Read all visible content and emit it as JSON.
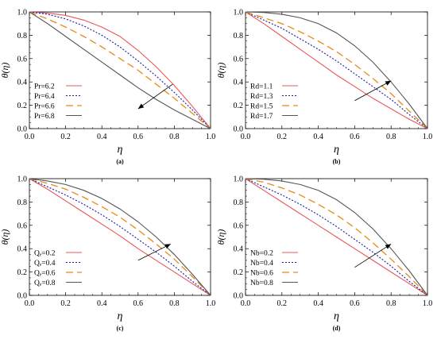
{
  "chart_data": [
    {
      "type": "line",
      "panel_label": "(a)",
      "xlabel": "η",
      "ylabel": "θ(η)",
      "xlim": [
        0,
        1
      ],
      "ylim": [
        0,
        1
      ],
      "xticks": [
        "0.0",
        "0.2",
        "0.4",
        "0.6",
        "0.8",
        "1.0"
      ],
      "yticks": [
        "0.0",
        "0.2",
        "0.4",
        "0.6",
        "0.8",
        "1.0"
      ],
      "legend_position": "bottom-left",
      "arrow": {
        "from": [
          0.79,
          0.38
        ],
        "to": [
          0.6,
          0.17
        ],
        "direction": "decreasing"
      },
      "x": [
        0,
        0.1,
        0.2,
        0.3,
        0.4,
        0.5,
        0.6,
        0.7,
        0.8,
        0.9,
        1.0
      ],
      "series": [
        {
          "name": "Pr=6.2",
          "color": "#e8575a",
          "dash": "solid",
          "values": [
            1.0,
            0.99,
            0.97,
            0.93,
            0.87,
            0.79,
            0.67,
            0.53,
            0.37,
            0.19,
            0.0
          ]
        },
        {
          "name": "Pr=6.4",
          "color": "#1a1aa8",
          "dash": "dotted",
          "values": [
            1.0,
            0.98,
            0.94,
            0.88,
            0.8,
            0.7,
            0.58,
            0.45,
            0.31,
            0.16,
            0.0
          ]
        },
        {
          "name": "Pr=6.6",
          "color": "#e88a14",
          "dash": "dashed",
          "values": [
            1.0,
            0.94,
            0.87,
            0.79,
            0.7,
            0.6,
            0.5,
            0.38,
            0.26,
            0.13,
            0.0
          ]
        },
        {
          "name": "Pr=6.8",
          "color": "#555555",
          "dash": "solid",
          "values": [
            1.0,
            0.9,
            0.79,
            0.68,
            0.57,
            0.46,
            0.35,
            0.25,
            0.16,
            0.08,
            0.0
          ]
        }
      ]
    },
    {
      "type": "line",
      "panel_label": "(b)",
      "xlabel": "η",
      "ylabel": "θ(η)",
      "xlim": [
        0,
        1
      ],
      "ylim": [
        0,
        1
      ],
      "xticks": [
        "0.0",
        "0.2",
        "0.4",
        "0.6",
        "0.8",
        "1.0"
      ],
      "yticks": [
        "0.0",
        "0.2",
        "0.4",
        "0.6",
        "0.8",
        "1.0"
      ],
      "legend_position": "bottom-left",
      "arrow": {
        "from": [
          0.6,
          0.24
        ],
        "to": [
          0.8,
          0.41
        ],
        "direction": "increasing"
      },
      "x": [
        0,
        0.1,
        0.2,
        0.3,
        0.4,
        0.5,
        0.6,
        0.7,
        0.8,
        0.9,
        1.0
      ],
      "series": [
        {
          "name": "Rd=1.1",
          "color": "#e8575a",
          "dash": "solid",
          "values": [
            1.0,
            0.9,
            0.79,
            0.68,
            0.57,
            0.46,
            0.36,
            0.26,
            0.17,
            0.08,
            0.0
          ]
        },
        {
          "name": "Rd=1.3",
          "color": "#1a1aa8",
          "dash": "dotted",
          "values": [
            1.0,
            0.93,
            0.86,
            0.77,
            0.68,
            0.58,
            0.47,
            0.36,
            0.25,
            0.12,
            0.0
          ]
        },
        {
          "name": "Rd=1.5",
          "color": "#e88a14",
          "dash": "dashed",
          "values": [
            1.0,
            0.95,
            0.9,
            0.83,
            0.75,
            0.66,
            0.55,
            0.43,
            0.3,
            0.15,
            0.0
          ]
        },
        {
          "name": "Rd=1.7",
          "color": "#555555",
          "dash": "solid",
          "values": [
            1.0,
            0.995,
            0.98,
            0.95,
            0.9,
            0.82,
            0.71,
            0.57,
            0.4,
            0.21,
            0.0
          ]
        }
      ]
    },
    {
      "type": "line",
      "panel_label": "(c)",
      "xlabel": "η",
      "ylabel": "θ(η)",
      "xlim": [
        0,
        1
      ],
      "ylim": [
        0,
        1
      ],
      "xticks": [
        "0.0",
        "0.2",
        "0.4",
        "0.6",
        "0.8",
        "1.0"
      ],
      "yticks": [
        "0.0",
        "0.2",
        "0.4",
        "0.6",
        "0.8",
        "1.0"
      ],
      "legend_position": "bottom-left",
      "arrow": {
        "from": [
          0.6,
          0.3
        ],
        "to": [
          0.78,
          0.44
        ],
        "direction": "increasing"
      },
      "x": [
        0,
        0.1,
        0.2,
        0.3,
        0.4,
        0.5,
        0.6,
        0.7,
        0.8,
        0.9,
        1.0
      ],
      "series": [
        {
          "name": "Qₑ=0.2",
          "color": "#e8575a",
          "dash": "solid",
          "values": [
            1.0,
            0.91,
            0.81,
            0.71,
            0.61,
            0.51,
            0.4,
            0.3,
            0.2,
            0.1,
            0.0
          ]
        },
        {
          "name": "Qₑ=0.4",
          "color": "#1a1aa8",
          "dash": "dotted",
          "values": [
            1.0,
            0.93,
            0.86,
            0.78,
            0.69,
            0.59,
            0.48,
            0.37,
            0.25,
            0.12,
            0.0
          ]
        },
        {
          "name": "Qₑ=0.6",
          "color": "#e88a14",
          "dash": "dashed",
          "values": [
            1.0,
            0.96,
            0.91,
            0.84,
            0.76,
            0.67,
            0.56,
            0.44,
            0.31,
            0.16,
            0.0
          ]
        },
        {
          "name": "Qₑ=0.8",
          "color": "#555555",
          "dash": "solid",
          "values": [
            1.0,
            0.98,
            0.95,
            0.9,
            0.83,
            0.74,
            0.63,
            0.5,
            0.35,
            0.18,
            0.0
          ]
        }
      ]
    },
    {
      "type": "line",
      "panel_label": "(d)",
      "xlabel": "η",
      "ylabel": "θ(η)",
      "xlim": [
        0,
        1
      ],
      "ylim": [
        0,
        1
      ],
      "xticks": [
        "0.0",
        "0.2",
        "0.4",
        "0.6",
        "0.8",
        "1.0"
      ],
      "yticks": [
        "0.0",
        "0.2",
        "0.4",
        "0.6",
        "0.8",
        "1.0"
      ],
      "legend_position": "bottom-left",
      "arrow": {
        "from": [
          0.6,
          0.24
        ],
        "to": [
          0.8,
          0.44
        ],
        "direction": "increasing"
      },
      "x": [
        0,
        0.1,
        0.2,
        0.3,
        0.4,
        0.5,
        0.6,
        0.7,
        0.8,
        0.9,
        1.0
      ],
      "series": [
        {
          "name": "Nb=0.2",
          "color": "#e8575a",
          "dash": "solid",
          "values": [
            1.0,
            0.9,
            0.8,
            0.7,
            0.6,
            0.5,
            0.4,
            0.3,
            0.2,
            0.1,
            0.0
          ]
        },
        {
          "name": "Nb=0.4",
          "color": "#1a1aa8",
          "dash": "dotted",
          "values": [
            1.0,
            0.93,
            0.86,
            0.78,
            0.69,
            0.59,
            0.48,
            0.37,
            0.25,
            0.12,
            0.0
          ]
        },
        {
          "name": "Nb=0.6",
          "color": "#e88a14",
          "dash": "dashed",
          "values": [
            1.0,
            0.97,
            0.92,
            0.86,
            0.78,
            0.69,
            0.58,
            0.45,
            0.31,
            0.16,
            0.0
          ]
        },
        {
          "name": "Nb=0.8",
          "color": "#555555",
          "dash": "solid",
          "values": [
            1.0,
            0.995,
            0.98,
            0.95,
            0.9,
            0.82,
            0.71,
            0.57,
            0.4,
            0.21,
            0.0
          ]
        }
      ]
    }
  ]
}
